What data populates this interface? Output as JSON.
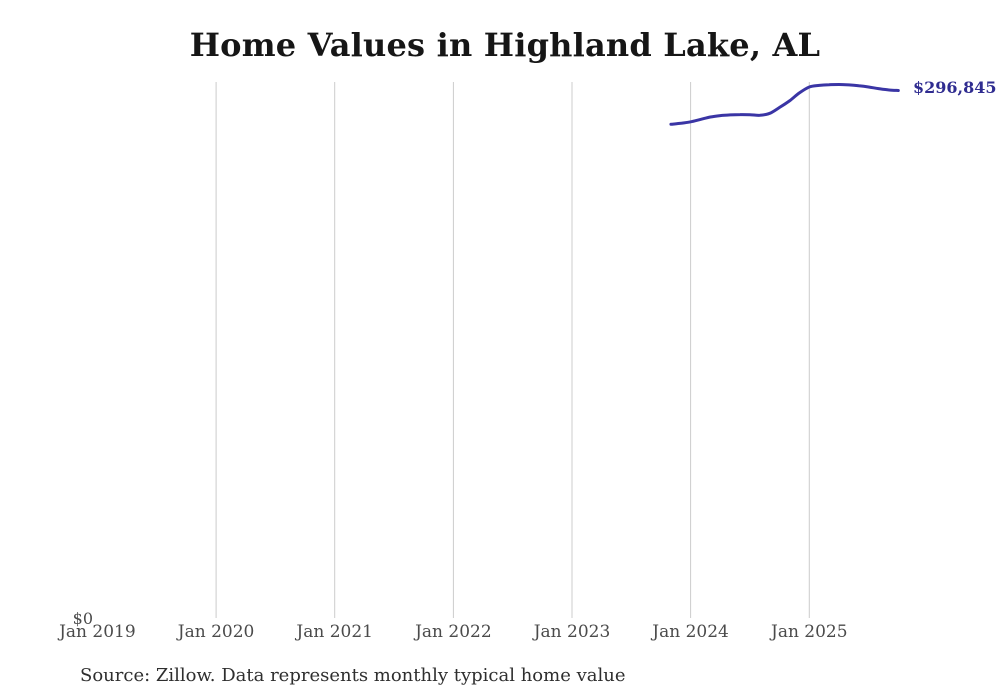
{
  "title": "Home Values in Highland Lake, AL",
  "end_label": "$296,845",
  "source_note": "Source: Zillow. Data represents monthly typical home value",
  "y_axis": {
    "zero_label": "$0"
  },
  "x_axis": {
    "tick_labels": [
      "Jan 2019",
      "Jan 2020",
      "Jan 2021",
      "Jan 2022",
      "Jan 2023",
      "Jan 2024",
      "Jan 2025"
    ],
    "gridline_years": [
      "Jan 2020",
      "Jan 2021",
      "Jan 2022",
      "Jan 2023",
      "Jan 2024",
      "Jan 2025"
    ]
  },
  "colors": {
    "line": "#3a35a5",
    "end_label": "#2f2c90",
    "gridline": "#cccccc",
    "axis_text": "#4b4b4b",
    "title_text": "#161616",
    "source_text": "#2e2e2e",
    "background": "#ffffff"
  },
  "chart_data": {
    "type": "line",
    "title": "Home Values in Highland Lake, AL",
    "series_name": "Monthly typical home value",
    "x": [
      "Nov 2023",
      "Dec 2023",
      "Jan 2024",
      "Feb 2024",
      "Mar 2024",
      "Apr 2024",
      "May 2024",
      "Jun 2024",
      "Jul 2024",
      "Aug 2024",
      "Sep 2024",
      "Oct 2024",
      "Nov 2024",
      "Dec 2024",
      "Jan 2025",
      "Feb 2025",
      "Mar 2025",
      "Apr 2025",
      "May 2025",
      "Jun 2025",
      "Jul 2025",
      "Aug 2025",
      "Sep 2025",
      "Oct 2025"
    ],
    "values": [
      277800,
      278400,
      279200,
      280600,
      281900,
      282700,
      283100,
      283300,
      283200,
      282900,
      284000,
      287300,
      291000,
      295500,
      298800,
      299700,
      300100,
      300200,
      300000,
      299500,
      298800,
      297900,
      297200,
      296845
    ],
    "xlabel": "",
    "ylabel": "",
    "ylim": [
      0,
      310000
    ],
    "x_axis_ticks": [
      "Jan 2019",
      "Jan 2020",
      "Jan 2021",
      "Jan 2022",
      "Jan 2023",
      "Jan 2024",
      "Jan 2025"
    ],
    "y_axis_ticks": [
      "$0"
    ],
    "grid": "vertical-only",
    "legend": "none",
    "last_point_label": "$296,845",
    "source": "Source: Zillow. Data represents monthly typical home value"
  }
}
